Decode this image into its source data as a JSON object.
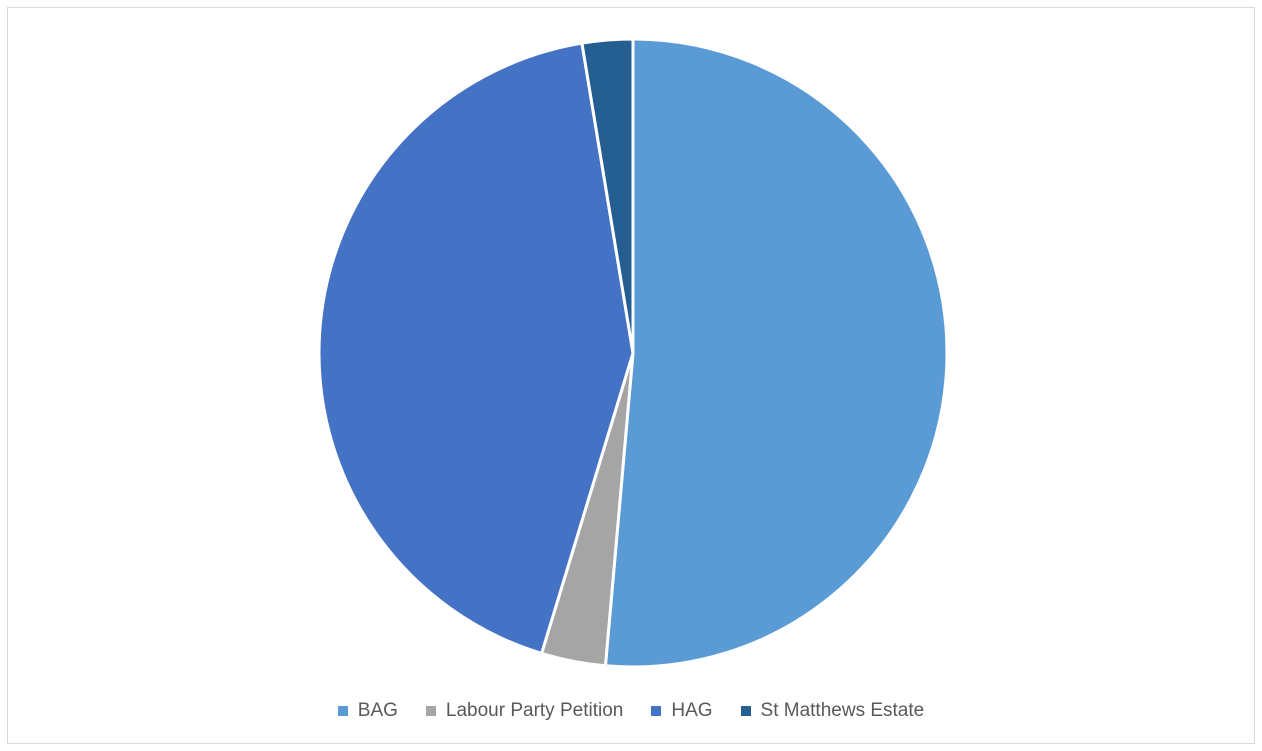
{
  "chart_data": {
    "type": "pie",
    "title": "",
    "slices": [
      {
        "label": "BAG",
        "value": 51.4,
        "color": "#5B9BD5"
      },
      {
        "label": "Labour Party Petition",
        "value": 3.3,
        "color": "#A5A5A5"
      },
      {
        "label": "HAG",
        "value": 42.7,
        "color": "#4472C4"
      },
      {
        "label": "St Matthews Estate",
        "value": 2.6,
        "color": "#255E91"
      }
    ],
    "legend_position": "bottom",
    "start_angle_deg": 0,
    "direction": "clockwise"
  }
}
